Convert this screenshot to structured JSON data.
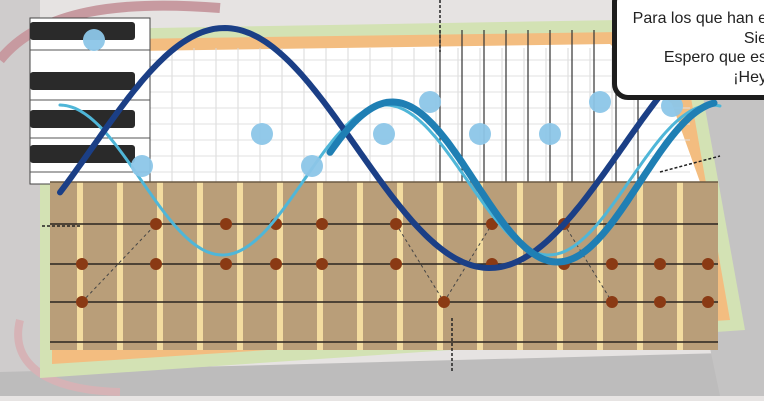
{
  "caption": {
    "lines": [
      "Para los que han e",
      "Sie",
      "Espero que es",
      "¡Hey"
    ]
  },
  "colors": {
    "background": "#e7e4e3",
    "fretboard": "#bfa17b",
    "fret": "#f3dca0",
    "string": "#2a2520",
    "note_dot": "#8a3a14",
    "piano_dot": "#8cc6e8",
    "wave_light": "#4fb6d8",
    "wave_mid": "#1f7fb4",
    "wave_dark": "#1b3f86",
    "border_orange": "#f2b775",
    "border_green": "#c9dca8",
    "piano_black": "#2a2a2a"
  },
  "icons": [
    "piano-keys-illustration",
    "fretboard-illustration",
    "sine-wave-illustration"
  ]
}
